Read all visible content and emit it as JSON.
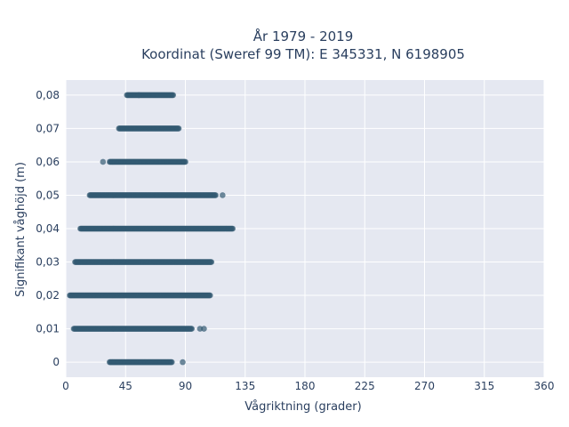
{
  "chart_data": {
    "type": "scatter",
    "title_line1": "År 1979 - 2019",
    "title_line2": "Koordinat (Sweref 99 TM): E 345331, N 6198905",
    "xlabel": "Vågriktning (grader)",
    "ylabel": "Signifikant våghöjd (m)",
    "xlim": [
      0,
      360
    ],
    "ylim": [
      -0.0045,
      0.0845
    ],
    "x_ticks": [
      0,
      45,
      90,
      135,
      180,
      225,
      270,
      315,
      360
    ],
    "x_tick_labels": [
      "0",
      "45",
      "90",
      "135",
      "180",
      "225",
      "270",
      "315",
      "360"
    ],
    "y_ticks": [
      0,
      0.01,
      0.02,
      0.03,
      0.04,
      0.05,
      0.06,
      0.07,
      0.08
    ],
    "y_tick_labels": [
      "0",
      "0,01",
      "0,02",
      "0,03",
      "0,04",
      "0,05",
      "0,06",
      "0,07",
      "0,08"
    ],
    "grid": true,
    "marker_color": "#335a72",
    "plot_bg": "#e5e8f1",
    "series": [
      {
        "rows": [
          {
            "y": 0.0,
            "x_min": 33,
            "x_max": 80,
            "outliers": [
              88
            ]
          },
          {
            "y": 0.01,
            "x_min": 6,
            "x_max": 95,
            "outliers": [
              101,
              104
            ]
          },
          {
            "y": 0.02,
            "x_min": 3,
            "x_max": 109,
            "outliers": []
          },
          {
            "y": 0.03,
            "x_min": 7,
            "x_max": 110,
            "outliers": []
          },
          {
            "y": 0.04,
            "x_min": 11,
            "x_max": 126,
            "outliers": []
          },
          {
            "y": 0.05,
            "x_min": 18,
            "x_max": 113,
            "outliers": [
              118
            ]
          },
          {
            "y": 0.06,
            "x_min": 33,
            "x_max": 90,
            "outliers": [
              28
            ]
          },
          {
            "y": 0.07,
            "x_min": 40,
            "x_max": 85,
            "outliers": []
          },
          {
            "y": 0.08,
            "x_min": 46,
            "x_max": 81,
            "outliers": [
              55
            ]
          }
        ]
      }
    ]
  }
}
